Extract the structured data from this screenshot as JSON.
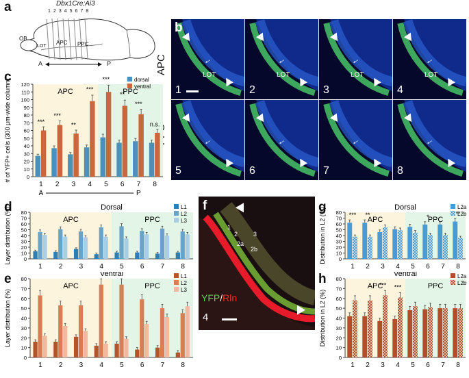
{
  "panel_letters": [
    "a",
    "b",
    "c",
    "d",
    "e",
    "f",
    "g",
    "h"
  ],
  "panel_a": {
    "title": "Dbx1Cre;Ai3",
    "sections": [
      "1",
      "2",
      "3",
      "4",
      "5",
      "6",
      "7",
      "8"
    ],
    "regions": [
      "OB",
      "LOT",
      "APC",
      "PPC"
    ],
    "axis_left": "A",
    "axis_right": "P"
  },
  "panel_b": {
    "row_labels": [
      "APC",
      "PPC"
    ],
    "tile_numbers": [
      "1",
      "2",
      "3",
      "4",
      "5",
      "6",
      "7",
      "8"
    ],
    "lot_label": "LOT"
  },
  "panel_f": {
    "channel_green": "YFP",
    "channel_sep": "/",
    "channel_red": "Rln",
    "number": "4",
    "layers": [
      "1",
      "2",
      "3",
      "2a",
      "2b"
    ]
  },
  "colors": {
    "dorsal": "#4a90b8",
    "ventral": "#c9683a",
    "apc_bg": "#fdf4dd",
    "ppc_bg": "#e3f5e6",
    "l1_d": "#2e7fb0",
    "l2_d": "#6aa3c8",
    "l3_d": "#a9cde2",
    "l1_v": "#b3542a",
    "l2_v": "#d87d56",
    "l3_v": "#f0b9a0"
  },
  "chart_data": [
    {
      "panel": "c",
      "type": "bar",
      "ylabel": "# of YFP+ cells (300 μm-wide column)",
      "ylim": [
        0,
        120
      ],
      "yticks": [
        0,
        10,
        20,
        30,
        40,
        50,
        60,
        70,
        80,
        90,
        100,
        110,
        120
      ],
      "categories": [
        "1",
        "2",
        "3",
        "4",
        "5",
        "6",
        "7",
        "8"
      ],
      "region_labels": [
        "APC",
        "PPC"
      ],
      "xaxis_ends": [
        "A",
        "P"
      ],
      "series": [
        {
          "name": "dorsal",
          "values": [
            27,
            37,
            29,
            38,
            51,
            44,
            46,
            44
          ]
        },
        {
          "name": "ventral",
          "values": [
            60,
            67,
            56,
            98,
            110,
            92,
            81,
            57
          ]
        }
      ],
      "significance": [
        "***",
        "***",
        "**",
        "***",
        "***",
        "**",
        "***",
        "n.s."
      ]
    },
    {
      "panel": "d",
      "type": "bar",
      "title": "Dorsal",
      "ylabel": "Layer distribution (%)",
      "ylim": [
        0,
        80
      ],
      "yticks": [
        0,
        10,
        20,
        30,
        40,
        50,
        60,
        70,
        80
      ],
      "categories": [
        "1",
        "2",
        "3",
        "4",
        "5",
        "6",
        "7",
        "8"
      ],
      "region_labels": [
        "APC",
        "PPC"
      ],
      "series": [
        {
          "name": "L1",
          "values": [
            13,
            12,
            17,
            8,
            11,
            11,
            9,
            11
          ]
        },
        {
          "name": "L2",
          "values": [
            46,
            51,
            47,
            54,
            56,
            48,
            52,
            47
          ]
        },
        {
          "name": "L3",
          "values": [
            41,
            38,
            37,
            38,
            35,
            42,
            40,
            42
          ]
        }
      ]
    },
    {
      "panel": "e",
      "type": "bar",
      "title": "Ventral",
      "ylabel": "Layer distribution (%)",
      "ylim": [
        0,
        80
      ],
      "yticks": [
        0,
        10,
        20,
        30,
        40,
        50,
        60,
        70,
        80
      ],
      "categories": [
        "1",
        "2",
        "3",
        "4",
        "5",
        "6",
        "7",
        "8"
      ],
      "region_labels": [
        "APC",
        "PPC"
      ],
      "series": [
        {
          "name": "L1",
          "values": [
            16,
            16,
            21,
            12,
            14,
            8,
            10,
            5
          ]
        },
        {
          "name": "L2",
          "values": [
            63,
            53,
            53,
            74,
            74,
            59,
            50,
            45
          ]
        },
        {
          "name": "L3",
          "values": [
            22,
            32,
            27,
            14,
            19,
            34,
            41,
            52
          ]
        }
      ]
    },
    {
      "panel": "g",
      "type": "bar",
      "title": "Dorsal",
      "ylabel": "Distribution in L2 (%)",
      "ylim": [
        0,
        80
      ],
      "yticks": [
        0,
        10,
        20,
        30,
        40,
        50,
        60,
        70,
        80
      ],
      "categories": [
        "1",
        "2",
        "3",
        "4",
        "5",
        "6",
        "7",
        "8"
      ],
      "region_labels": [
        "APC",
        "PPC"
      ],
      "series": [
        {
          "name": "L2a",
          "values": [
            62,
            62,
            46,
            51,
            55,
            59,
            59,
            64
          ]
        },
        {
          "name": "L2b",
          "values": [
            38,
            38,
            54,
            49,
            45,
            41,
            41,
            36
          ]
        }
      ],
      "significance": [
        "***",
        "**",
        "",
        "",
        "",
        "*",
        "",
        "**"
      ]
    },
    {
      "panel": "h",
      "type": "bar",
      "title": "Ventral",
      "ylabel": "Distribution in L2 (%)",
      "ylim": [
        0,
        80
      ],
      "yticks": [
        0,
        10,
        20,
        30,
        40,
        50,
        60,
        70,
        80
      ],
      "categories": [
        "1",
        "2",
        "3",
        "4",
        "5",
        "6",
        "7",
        "8"
      ],
      "region_labels": [
        "APC",
        "PPC"
      ],
      "series": [
        {
          "name": "L2a",
          "values": [
            42,
            42,
            37,
            39,
            48,
            49,
            50,
            50
          ]
        },
        {
          "name": "L2b",
          "values": [
            58,
            58,
            63,
            61,
            52,
            51,
            50,
            50
          ]
        }
      ],
      "significance": [
        "",
        "",
        "***",
        "***",
        "",
        "",
        "",
        ""
      ]
    }
  ]
}
